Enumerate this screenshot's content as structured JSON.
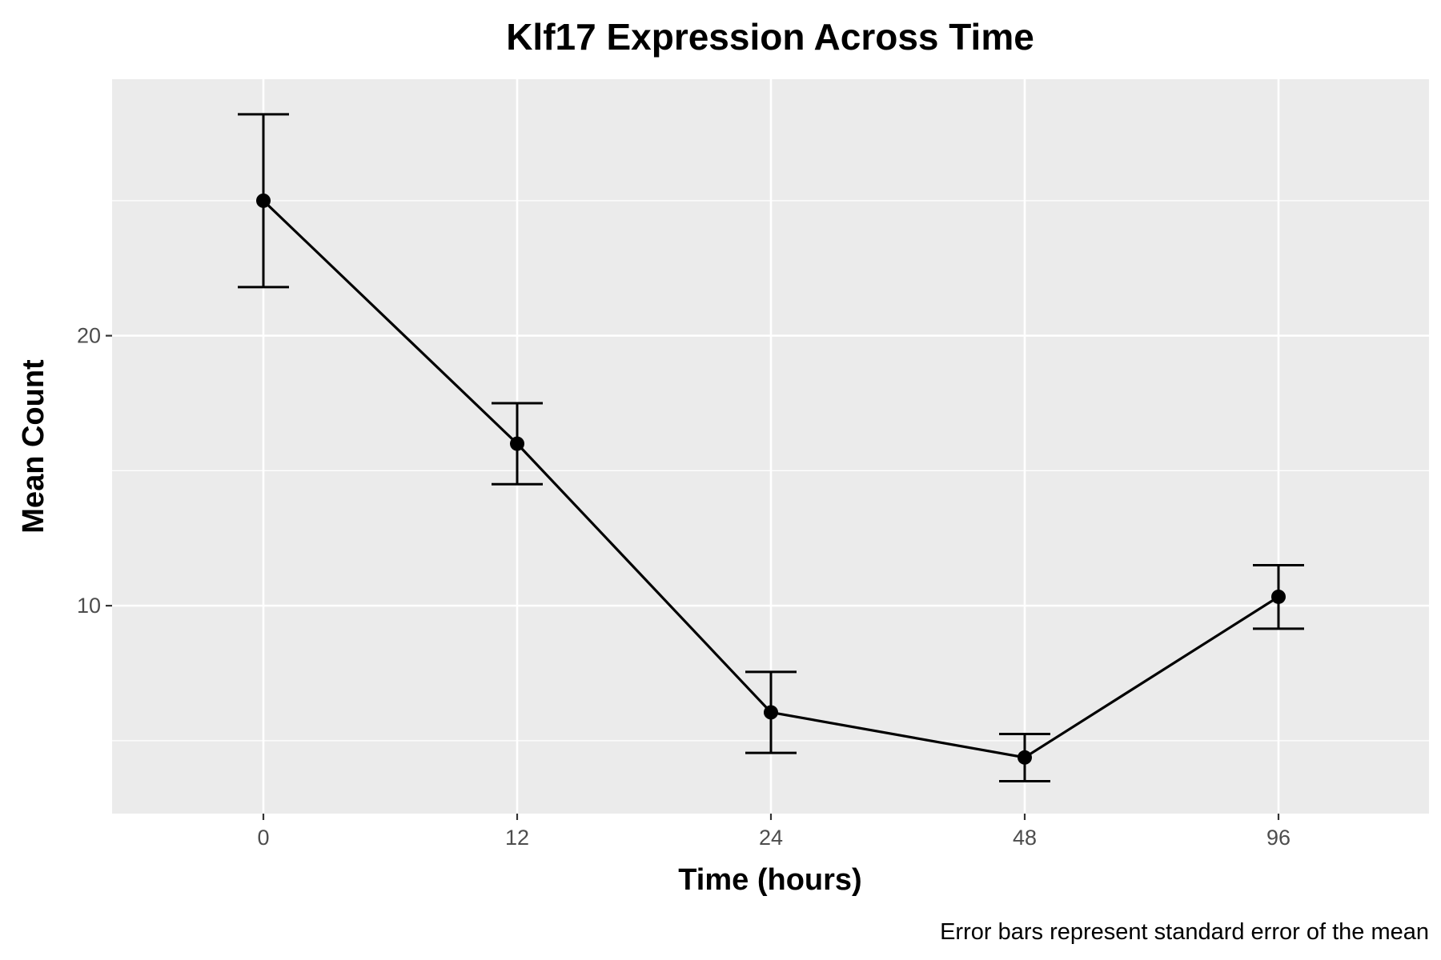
{
  "chart_data": {
    "type": "line",
    "title": "Klf17 Expression Across Time",
    "xlabel": "Time (hours)",
    "ylabel": "Mean Count",
    "caption": "Error bars represent standard error of the mean",
    "x_scale": "categorical",
    "categories": [
      "0",
      "12",
      "24",
      "48",
      "96"
    ],
    "ylim": [
      2.3,
      29.5
    ],
    "y_ticks": [
      10,
      20
    ],
    "y_tick_labels": [
      "10",
      "20"
    ],
    "grid": true,
    "series": [
      {
        "values": [
          25.0,
          16.0,
          6.05,
          4.38,
          10.33
        ],
        "error_lower": [
          21.8,
          14.5,
          4.55,
          3.5,
          9.15
        ],
        "error_upper": [
          28.2,
          17.5,
          7.55,
          5.25,
          11.5
        ],
        "color": "#000000"
      }
    ],
    "panel_background": "#ebebeb",
    "grid_color": "#ffffff"
  }
}
